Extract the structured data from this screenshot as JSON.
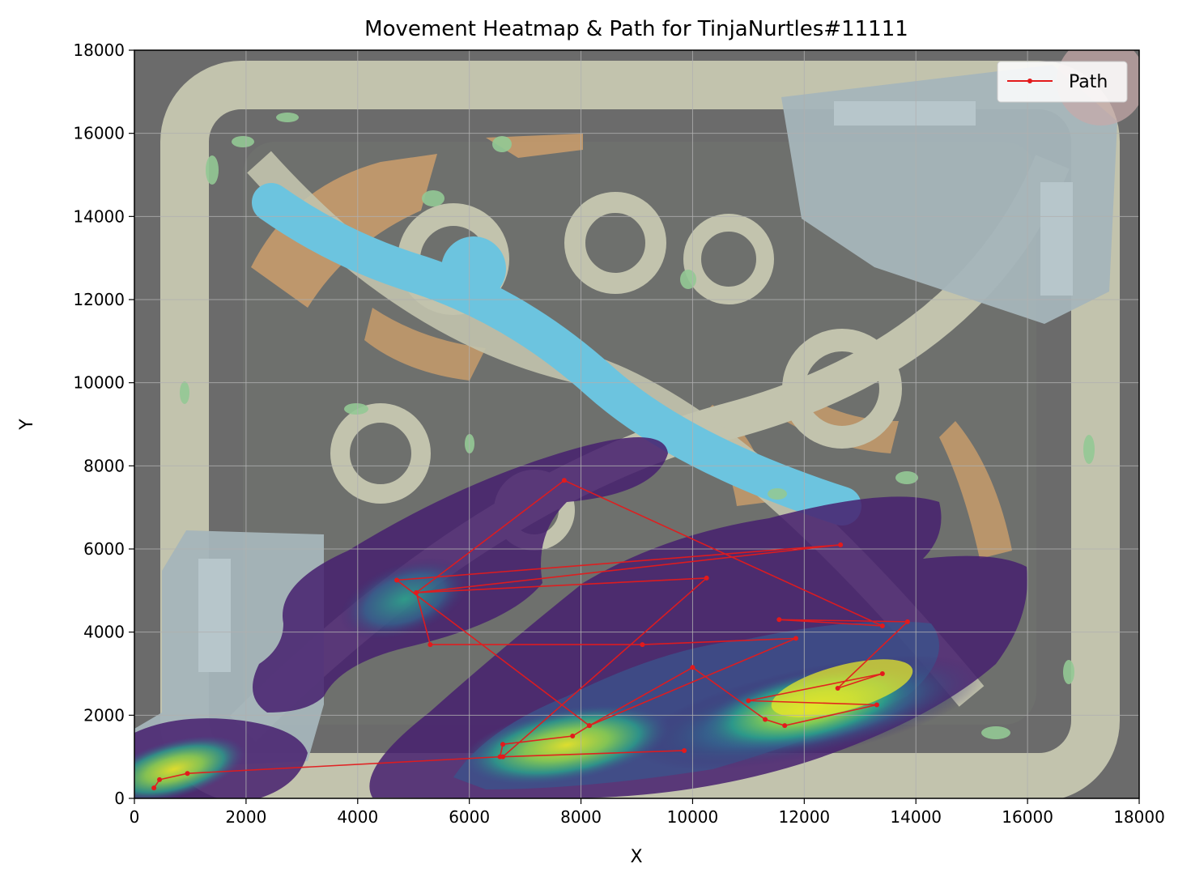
{
  "chart_data": {
    "type": "line",
    "title": "Movement Heatmap & Path for TinjaNurtles#11111",
    "xlabel": "X",
    "ylabel": "Y",
    "xlim": [
      0,
      18000
    ],
    "ylim": [
      0,
      18000
    ],
    "xticks": [
      0,
      2000,
      4000,
      6000,
      8000,
      10000,
      12000,
      14000,
      16000,
      18000
    ],
    "yticks": [
      0,
      2000,
      4000,
      6000,
      8000,
      10000,
      12000,
      14000,
      16000,
      18000
    ],
    "grid": true,
    "legend_position": "top-right",
    "background": "game map image with movement density heatmap (viridis) overlay",
    "colors": {
      "path": "#e31a1c",
      "map_dark": "#6b6b6b",
      "lane": "#c2c3ad",
      "river": "#6cc4df"
    },
    "series": [
      {
        "name": "Path",
        "x": [
          350,
          450,
          950,
          6550,
          6600,
          7850,
          8150,
          10000,
          11300,
          11650,
          13300,
          11000,
          13400,
          12600,
          13850,
          11550,
          13400,
          7700,
          5050,
          5300,
          9100,
          11850,
          8150,
          4700,
          12650,
          5050,
          10250,
          6600,
          9850
        ],
        "y": [
          250,
          450,
          600,
          1000,
          1300,
          1500,
          1750,
          3150,
          1900,
          1750,
          2250,
          2350,
          3000,
          2650,
          4250,
          4300,
          4150,
          7650,
          4950,
          3700,
          3700,
          3850,
          1750,
          5250,
          6100,
          4950,
          5300,
          1000,
          1150
        ]
      }
    ]
  }
}
